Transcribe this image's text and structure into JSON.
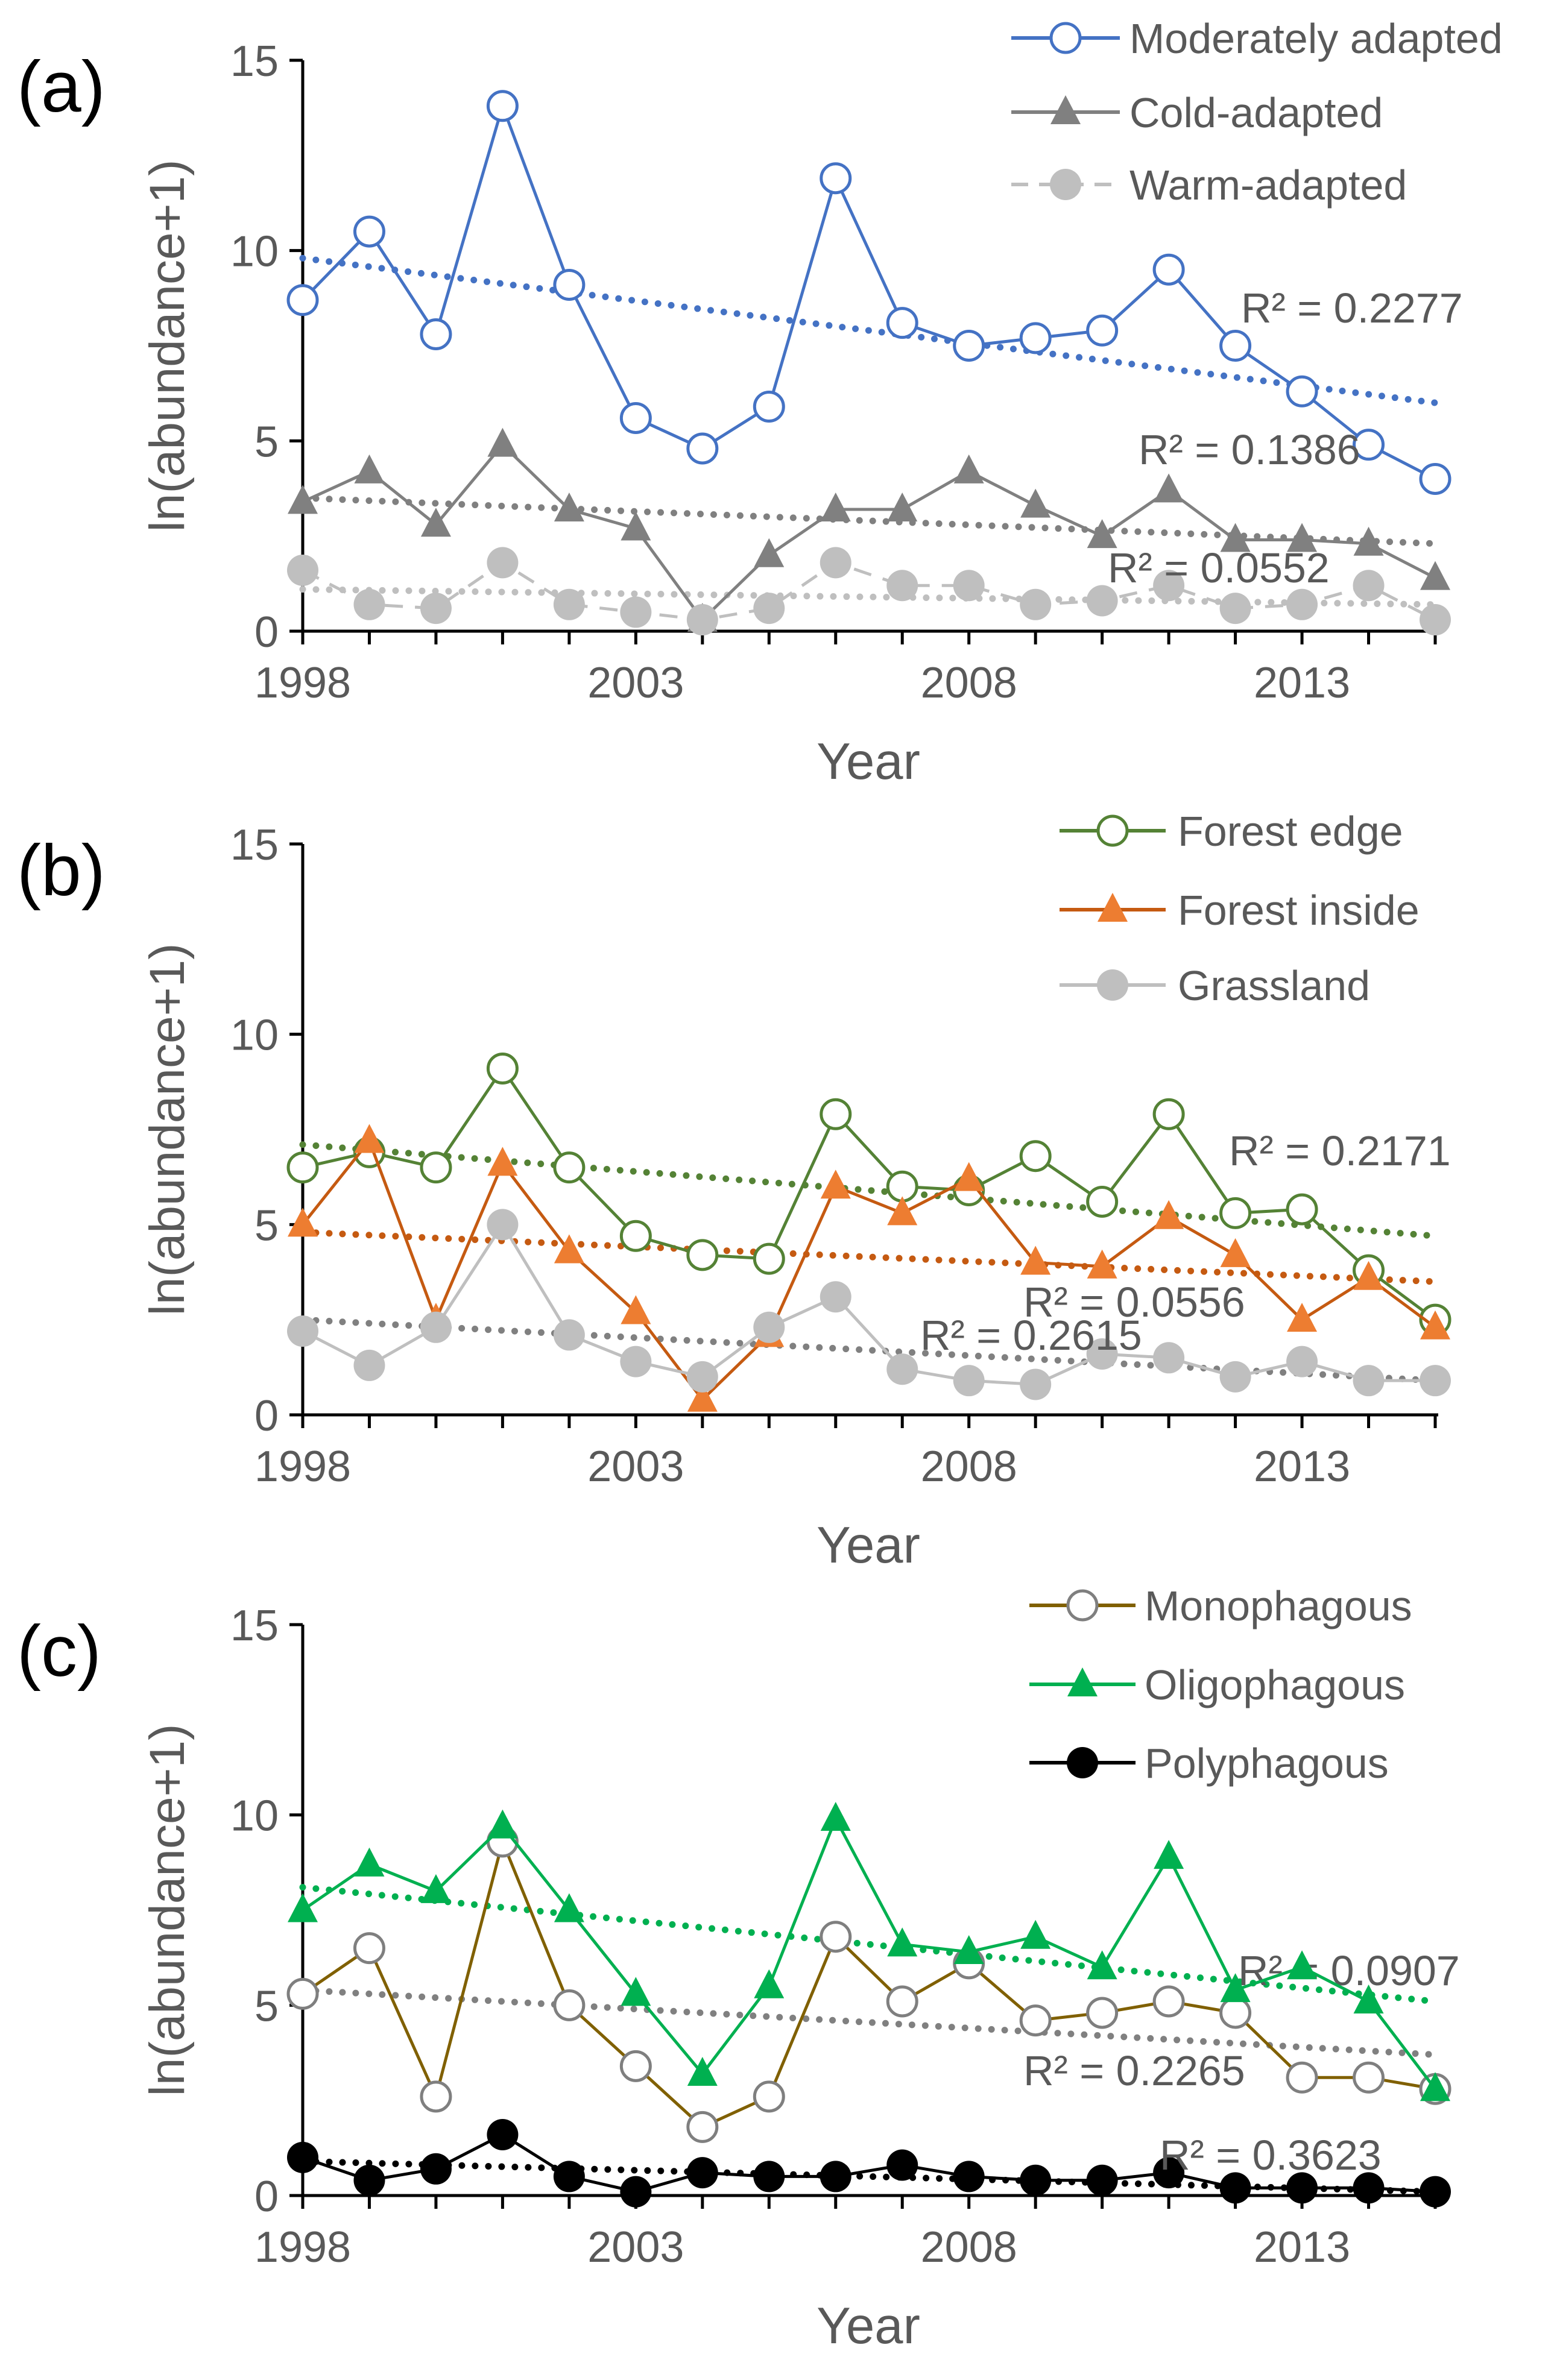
{
  "chart_data": [
    {
      "type": "line",
      "panel_label": "(a)",
      "xlabel": "Year",
      "ylabel": "ln(abundance+1)",
      "xlim": [
        1998,
        2015
      ],
      "ylim": [
        0,
        15
      ],
      "x_ticks": [
        1998,
        2003,
        2008,
        2013
      ],
      "y_ticks": [
        0,
        5,
        10,
        15
      ],
      "legend_position": "top-right",
      "x": [
        1998,
        1999,
        2000,
        2001,
        2002,
        2003,
        2004,
        2005,
        2006,
        2007,
        2008,
        2009,
        2010,
        2011,
        2012,
        2013,
        2014,
        2015
      ],
      "series": [
        {
          "name": "Moderately adapted",
          "color": "#4472C4",
          "marker": "open-circle",
          "dash": "solid",
          "values": [
            8.7,
            10.5,
            7.8,
            13.8,
            9.1,
            5.6,
            4.8,
            5.9,
            11.9,
            8.1,
            7.5,
            7.7,
            7.9,
            9.5,
            7.5,
            6.3,
            4.9,
            4.0
          ],
          "trend": {
            "start": 9.8,
            "end": 6.0,
            "color": "#4472C4",
            "label": "R² = 0.2277"
          }
        },
        {
          "name": "Cold-adapted",
          "color": "#808080",
          "marker": "triangle",
          "dash": "solid",
          "values": [
            3.4,
            4.2,
            2.8,
            4.9,
            3.2,
            2.7,
            0.3,
            2.0,
            3.2,
            3.2,
            4.2,
            3.3,
            2.5,
            3.7,
            2.4,
            2.4,
            2.3,
            1.4
          ],
          "trend": {
            "start": 3.5,
            "end": 2.3,
            "color": "#808080",
            "label": "R² = 0.1386"
          }
        },
        {
          "name": "Warm-adapted",
          "color": "#BFBFBF",
          "marker": "filled-circle",
          "dash": "dashed",
          "values": [
            1.6,
            0.7,
            0.6,
            1.8,
            0.7,
            0.5,
            0.3,
            0.6,
            1.8,
            1.2,
            1.2,
            0.7,
            0.8,
            1.2,
            0.6,
            0.7,
            1.2,
            0.3
          ],
          "trend": {
            "start": 1.1,
            "end": 0.7,
            "color": "#BFBFBF",
            "label": "R² = 0.0552"
          }
        }
      ]
    },
    {
      "type": "line",
      "panel_label": "(b)",
      "xlabel": "Year",
      "ylabel": "ln(abundance+1)",
      "xlim": [
        1998,
        2015
      ],
      "ylim": [
        0,
        15
      ],
      "x_ticks": [
        1998,
        2003,
        2008,
        2013
      ],
      "y_ticks": [
        0,
        5,
        10,
        15
      ],
      "legend_position": "top-right",
      "x": [
        1998,
        1999,
        2000,
        2001,
        2002,
        2003,
        2004,
        2005,
        2006,
        2007,
        2008,
        2009,
        2010,
        2011,
        2012,
        2013,
        2014,
        2015
      ],
      "series": [
        {
          "name": "Forest edge",
          "color": "#548235",
          "marker": "open-circle",
          "dash": "solid",
          "values": [
            6.5,
            6.9,
            6.5,
            9.1,
            6.5,
            4.7,
            4.2,
            4.1,
            7.9,
            6.0,
            5.9,
            6.8,
            5.6,
            7.9,
            5.3,
            5.4,
            3.8,
            2.5
          ],
          "trend": {
            "start": 7.1,
            "end": 4.7,
            "color": "#548235",
            "label": "R² = 0.2171"
          }
        },
        {
          "name": "Forest inside",
          "color": "#C55A11",
          "marker": "triangle",
          "marker_color": "#ED7D31",
          "dash": "solid",
          "values": [
            5.0,
            7.2,
            2.5,
            6.6,
            4.3,
            2.7,
            0.4,
            2.1,
            6.0,
            5.3,
            6.2,
            4.0,
            3.9,
            5.2,
            4.2,
            2.5,
            3.6,
            2.3
          ],
          "trend": {
            "start": 4.8,
            "end": 3.5,
            "color": "#C55A11",
            "label": "R² = 0.0556"
          }
        },
        {
          "name": "Grassland",
          "color": "#BFBFBF",
          "marker": "filled-circle",
          "dash": "solid",
          "values": [
            2.2,
            1.3,
            2.3,
            5.0,
            2.1,
            1.4,
            1.0,
            2.3,
            3.1,
            1.2,
            0.9,
            0.8,
            1.6,
            1.5,
            1.0,
            1.4,
            0.9,
            0.9
          ],
          "trend": {
            "start": 2.5,
            "end": 0.9,
            "color": "#808080",
            "label": "R² = 0.2615"
          }
        }
      ]
    },
    {
      "type": "line",
      "panel_label": "(c)",
      "xlabel": "Year",
      "ylabel": "ln(abundance+1)",
      "xlim": [
        1998,
        2015
      ],
      "ylim": [
        0,
        15
      ],
      "x_ticks": [
        1998,
        2003,
        2008,
        2013
      ],
      "y_ticks": [
        0,
        5,
        10,
        15
      ],
      "legend_position": "top-right",
      "x": [
        1998,
        1999,
        2000,
        2001,
        2002,
        2003,
        2004,
        2005,
        2006,
        2007,
        2008,
        2009,
        2010,
        2011,
        2012,
        2013,
        2014,
        2015
      ],
      "series": [
        {
          "name": "Monophagous",
          "color": "#806000",
          "marker": "open-circle",
          "marker_color": "#7F7F7F",
          "dash": "solid",
          "values": [
            5.3,
            6.5,
            2.6,
            9.3,
            5.0,
            3.4,
            1.8,
            2.6,
            6.8,
            5.1,
            6.1,
            4.6,
            4.8,
            5.1,
            4.8,
            3.1,
            3.1,
            2.8
          ],
          "trend": {
            "start": 5.4,
            "end": 3.7,
            "color": "#808080",
            "label": "R² = 0.0907"
          }
        },
        {
          "name": "Oligophagous",
          "color": "#00B050",
          "marker": "triangle",
          "dash": "solid",
          "values": [
            7.5,
            8.7,
            8.0,
            9.7,
            7.5,
            5.3,
            3.2,
            5.5,
            9.9,
            6.6,
            6.4,
            6.8,
            6.0,
            8.9,
            5.4,
            6.0,
            5.1,
            2.8
          ],
          "trend": {
            "start": 8.1,
            "end": 5.1,
            "color": "#00B050",
            "label": "R² = 0.2265"
          }
        },
        {
          "name": "Polyphagous",
          "color": "#000000",
          "marker": "filled-circle",
          "dash": "solid",
          "values": [
            1.0,
            0.4,
            0.7,
            1.6,
            0.5,
            0.1,
            0.6,
            0.5,
            0.5,
            0.8,
            0.5,
            0.4,
            0.4,
            0.6,
            0.2,
            0.2,
            0.2,
            0.1
          ],
          "trend": {
            "start": 0.9,
            "end": 0.1,
            "color": "#000000",
            "label": "R² = 0.3623"
          }
        }
      ]
    }
  ]
}
